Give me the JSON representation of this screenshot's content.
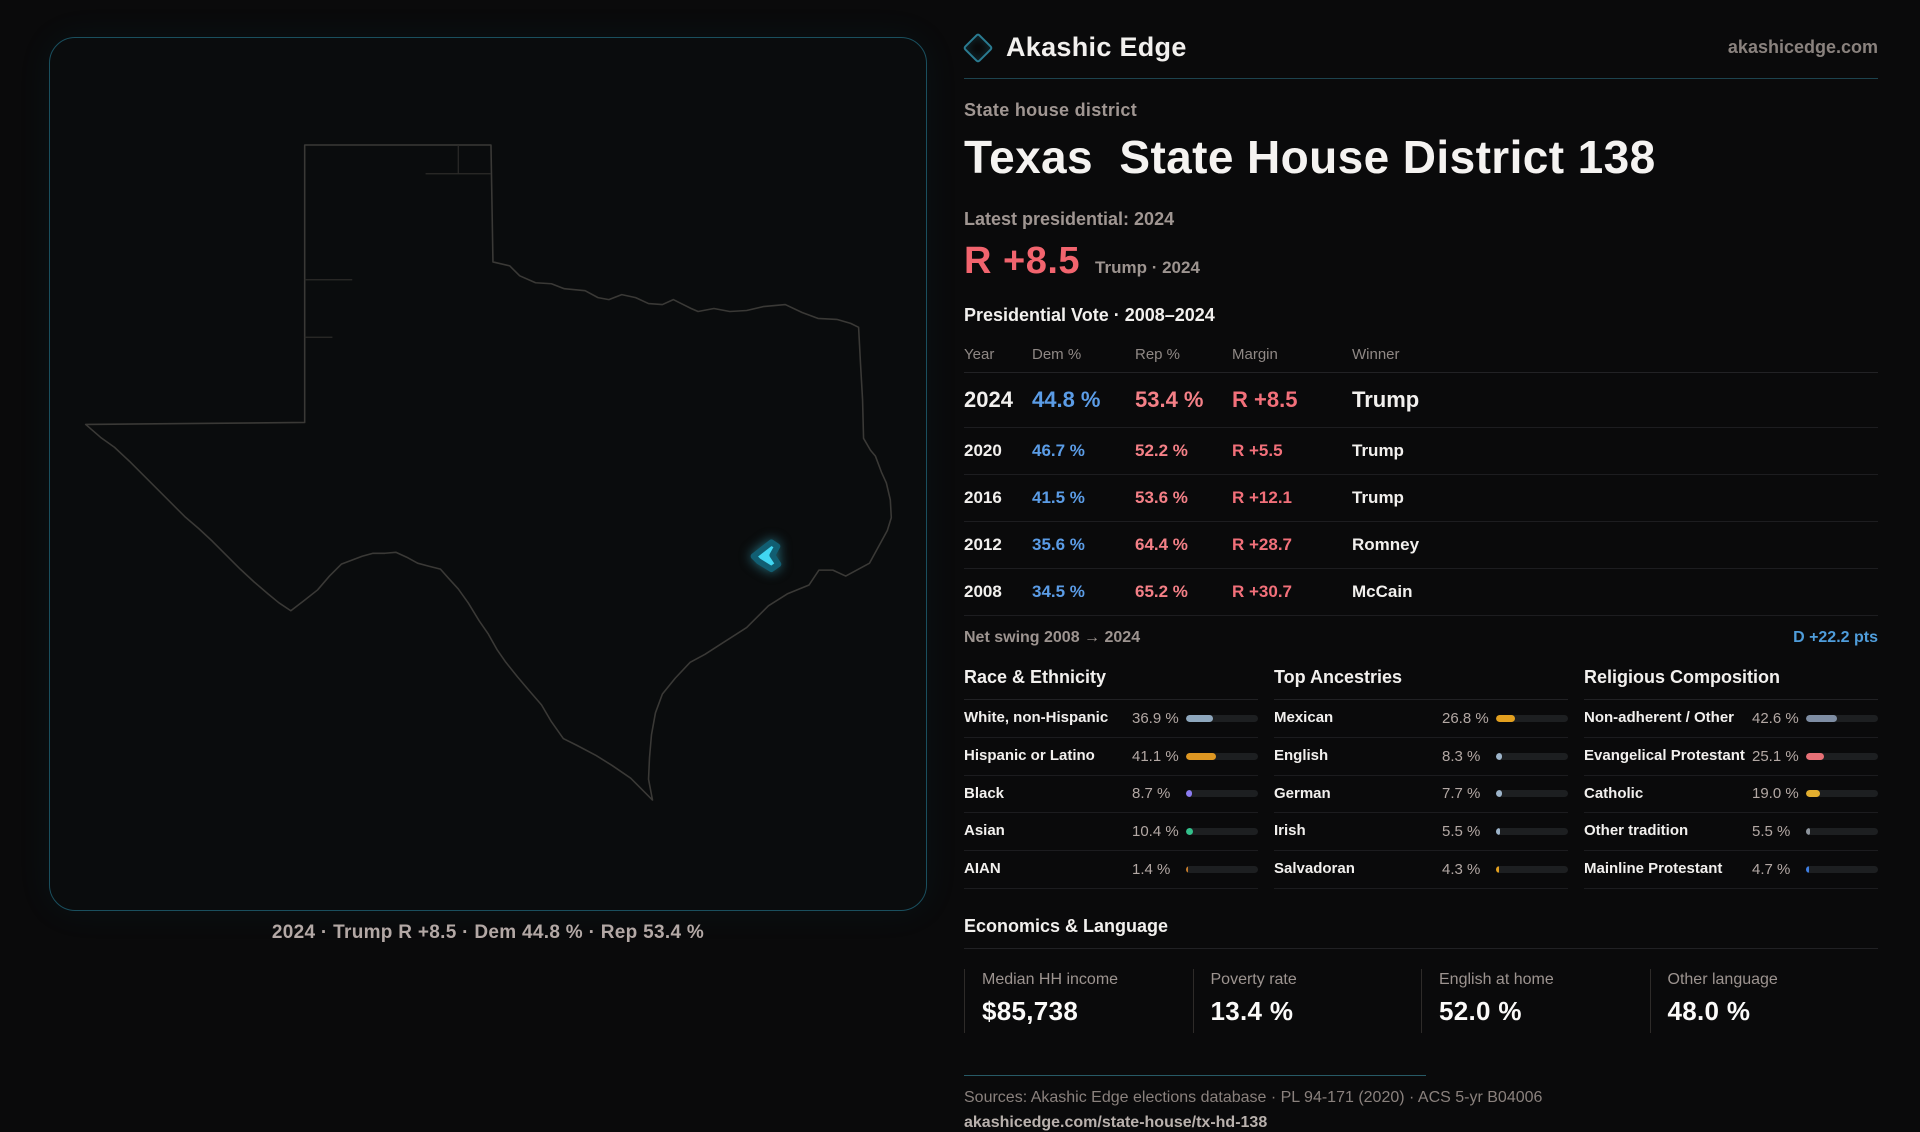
{
  "brand": {
    "name": "Akashic Edge",
    "domain": "akashicedge.com"
  },
  "page": {
    "kicker": "State house district",
    "title": "Texas  State House District 138",
    "latest_label": "Latest presidential: 2024",
    "headline_margin": "R +8.5",
    "headline_sub": "Trump · 2024",
    "table_title": "Presidential Vote · 2008–2024"
  },
  "map": {
    "caption": "2024 · Trump R +8.5 · Dem 44.8 % · Rep 53.4 %",
    "district_color": "#41d6f2"
  },
  "table": {
    "headers": {
      "year": "Year",
      "dem": "Dem %",
      "rep": "Rep %",
      "margin": "Margin",
      "winner": "Winner"
    },
    "rows": [
      {
        "year": "2024",
        "dem": "44.8 %",
        "rep": "53.4 %",
        "margin": "R +8.5",
        "winner": "Trump"
      },
      {
        "year": "2020",
        "dem": "46.7 %",
        "rep": "52.2 %",
        "margin": "R +5.5",
        "winner": "Trump"
      },
      {
        "year": "2016",
        "dem": "41.5 %",
        "rep": "53.6 %",
        "margin": "R +12.1",
        "winner": "Trump"
      },
      {
        "year": "2012",
        "dem": "35.6 %",
        "rep": "64.4 %",
        "margin": "R +28.7",
        "winner": "Romney"
      },
      {
        "year": "2008",
        "dem": "34.5 %",
        "rep": "65.2 %",
        "margin": "R +30.7",
        "winner": "McCain"
      }
    ]
  },
  "net_swing": {
    "label": "Net swing 2008 → 2024",
    "value": "D +22.2 pts"
  },
  "race": {
    "title": "Race & Ethnicity",
    "rows": [
      {
        "label": "White, non-Hispanic",
        "value": "36.9 %",
        "pct": 36.9,
        "color": "#8ea7bd"
      },
      {
        "label": "Hispanic or Latino",
        "value": "41.1 %",
        "pct": 41.1,
        "color": "#de9722"
      },
      {
        "label": "Black",
        "value": "8.7 %",
        "pct": 8.7,
        "color": "#8b7bf0"
      },
      {
        "label": "Asian",
        "value": "10.4 %",
        "pct": 10.4,
        "color": "#33c08b"
      },
      {
        "label": "AIAN",
        "value": "1.4 %",
        "pct": 1.4,
        "color": "#c57b2a"
      }
    ]
  },
  "ancestry": {
    "title": "Top Ancestries",
    "rows": [
      {
        "label": "Mexican",
        "value": "26.8 %",
        "pct": 26.8,
        "color": "#e3a01f"
      },
      {
        "label": "English",
        "value": "8.3 %",
        "pct": 8.3,
        "color": "#9db4ca"
      },
      {
        "label": "German",
        "value": "7.7 %",
        "pct": 7.7,
        "color": "#9db4ca"
      },
      {
        "label": "Irish",
        "value": "5.5 %",
        "pct": 5.5,
        "color": "#9db4ca"
      },
      {
        "label": "Salvadoran",
        "value": "4.3 %",
        "pct": 4.3,
        "color": "#e3a01f"
      }
    ]
  },
  "religion": {
    "title": "Religious Composition",
    "rows": [
      {
        "label": "Non-adherent / Other",
        "value": "42.6 %",
        "pct": 42.6,
        "color": "#7e8da3"
      },
      {
        "label": "Evangelical Protestant",
        "value": "25.1 %",
        "pct": 25.1,
        "color": "#e77076"
      },
      {
        "label": "Catholic",
        "value": "19.0 %",
        "pct": 19.0,
        "color": "#e2ae2f"
      },
      {
        "label": "Other tradition",
        "value": "5.5 %",
        "pct": 5.5,
        "color": "#8d949c"
      },
      {
        "label": "Mainline Protestant",
        "value": "4.7 %",
        "pct": 4.7,
        "color": "#3e7ee2"
      }
    ]
  },
  "economics": {
    "title": "Economics & Language",
    "stats": [
      {
        "label": "Median HH income",
        "value": "$85,738"
      },
      {
        "label": "Poverty rate",
        "value": "13.4 %"
      },
      {
        "label": "English at home",
        "value": "52.0 %"
      },
      {
        "label": "Other language",
        "value": "48.0 %"
      }
    ]
  },
  "footer": {
    "sources": "Sources: Akashic Edge elections database · PL 94-171 (2020) · ACS 5-yr B04006",
    "url": "akashicedge.com/state-house/tx-hd-138"
  }
}
